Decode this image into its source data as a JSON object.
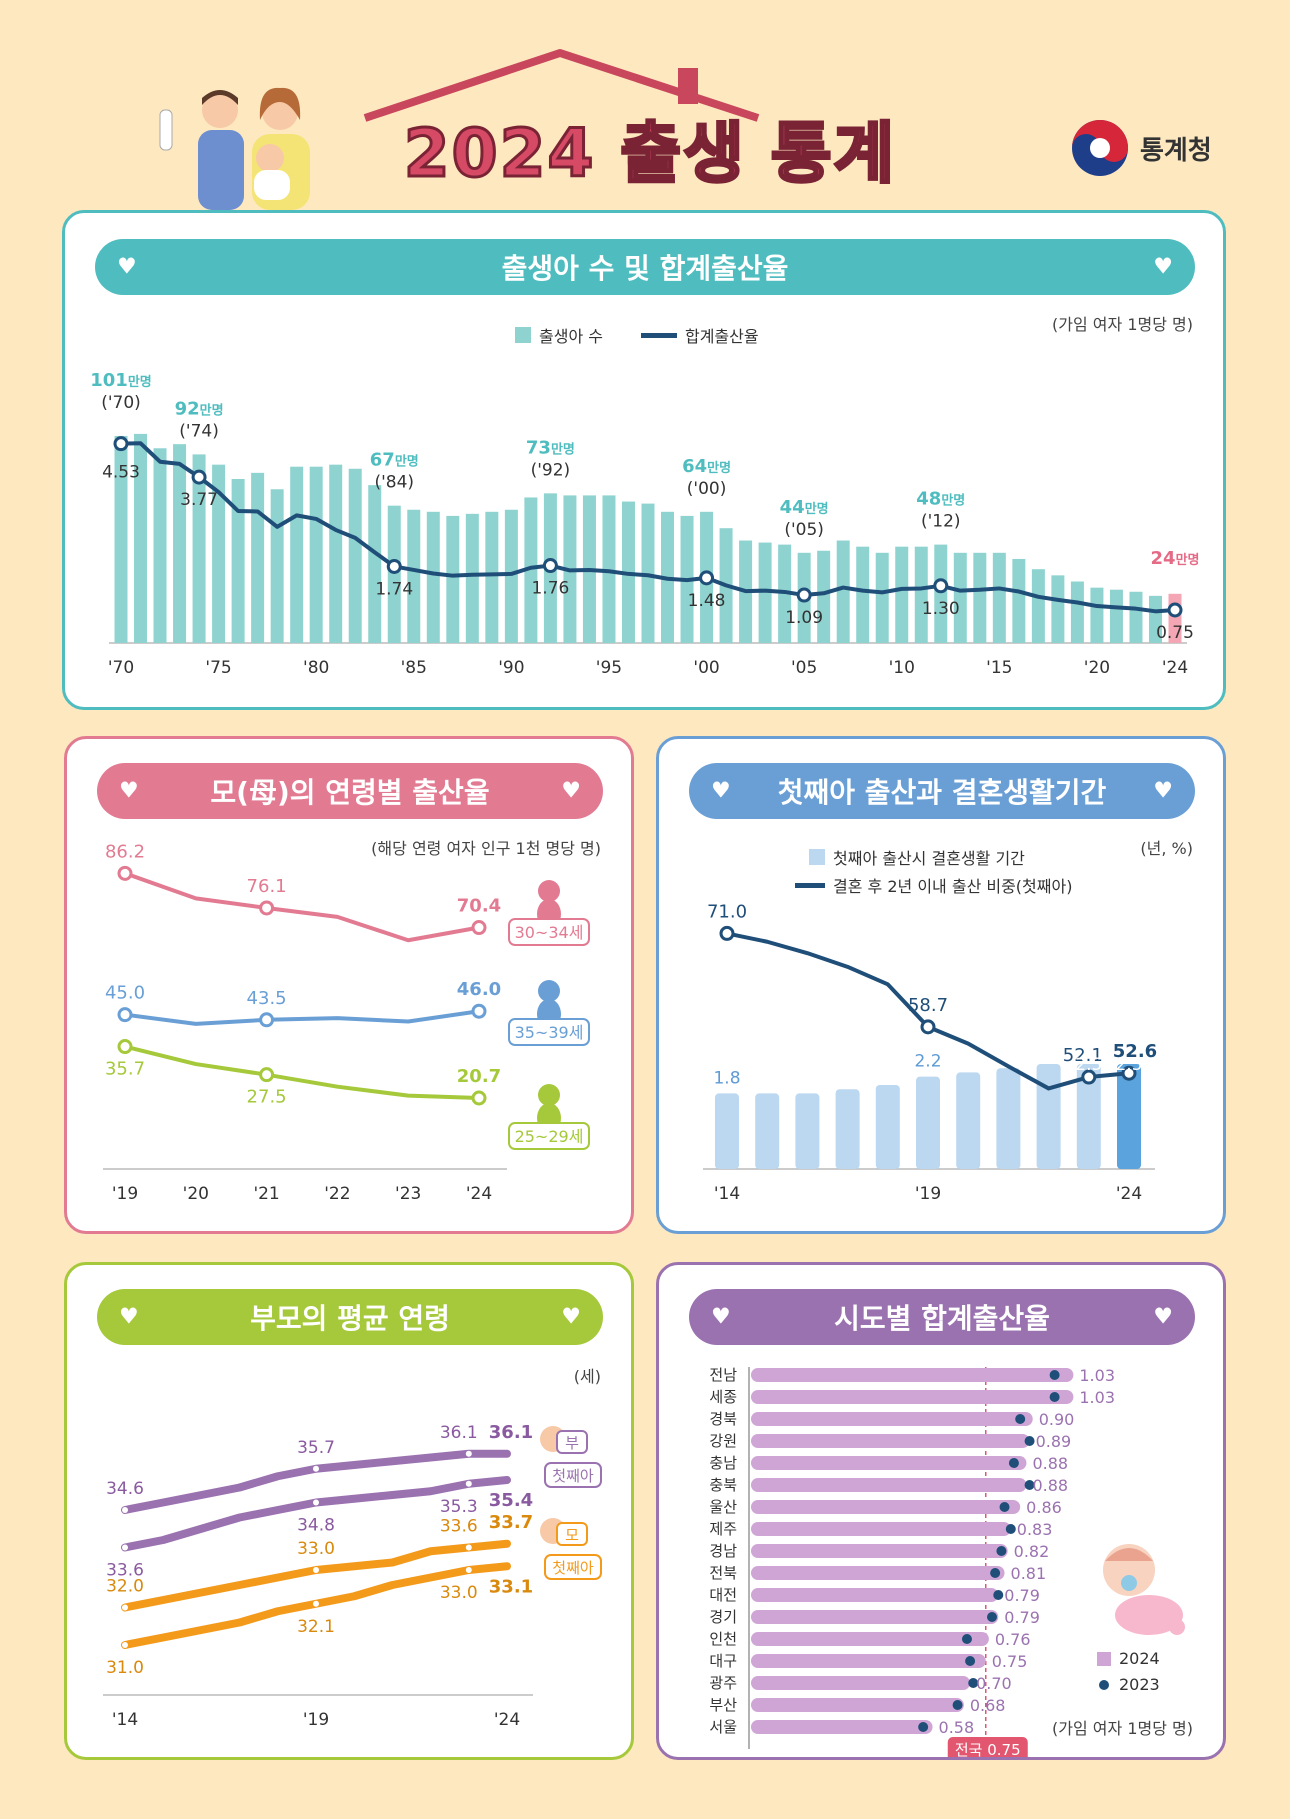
{
  "header": {
    "title": "2024 출생 통계",
    "agency": "통계청"
  },
  "colors": {
    "teal": "#4fbdbf",
    "tealBar": "#8fd3d0",
    "navy": "#1f4e79",
    "pink": "#e27b92",
    "blue": "#6a9fd6",
    "green": "#a5c93a",
    "purple": "#9b72b0",
    "orange": "#f39a1b",
    "lightblue": "#bcd7f0",
    "tfrBar": "#cfa5d6"
  },
  "panel1": {
    "title": "출생아 수 및 합계출산율",
    "unit": "(가임 여자 1명당 명)",
    "legend": {
      "bars": "출생아 수",
      "line": "합계출산율"
    },
    "xticks": [
      "'70",
      "'75",
      "'80",
      "'85",
      "'90",
      "'95",
      "'00",
      "'05",
      "'10",
      "'15",
      "'20",
      "'24"
    ],
    "birth_labels": [
      {
        "value": "101",
        "suffix": "만명",
        "year": "('70)"
      },
      {
        "value": "92",
        "suffix": "만명",
        "year": "('74)"
      },
      {
        "value": "67",
        "suffix": "만명",
        "year": "('84)"
      },
      {
        "value": "73",
        "suffix": "만명",
        "year": "('92)"
      },
      {
        "value": "64",
        "suffix": "만명",
        "year": "('00)"
      },
      {
        "value": "44",
        "suffix": "만명",
        "year": "('05)"
      },
      {
        "value": "48",
        "suffix": "만명",
        "year": "('12)"
      },
      {
        "value": "24",
        "suffix": "만명",
        "year": ""
      }
    ],
    "tfr_labels": [
      "4.53",
      "3.77",
      "1.74",
      "1.76",
      "1.48",
      "1.09",
      "1.30",
      "0.75"
    ]
  },
  "panel2": {
    "title": "모(母)의 연령별 출산율",
    "unit": "(해당 연령 여자 인구 1천 명당 명)",
    "xticks": [
      "'19",
      "'20",
      "'21",
      "'22",
      "'23",
      "'24"
    ],
    "badges": [
      "30~34세",
      "35~39세",
      "25~29세"
    ],
    "labels": {
      "a30": [
        "86.2",
        "76.1",
        "70.4"
      ],
      "a35": [
        "45.0",
        "43.5",
        "46.0"
      ],
      "a25": [
        "35.7",
        "27.5",
        "20.7"
      ]
    }
  },
  "panel3": {
    "title": "첫째아 출산과 결혼생활기간",
    "unit": "(년, %)",
    "legend": {
      "bars": "첫째아 출산시 결혼생활 기간",
      "line": "결혼 후 2년 이내 출산 비중(첫째아)"
    },
    "xticks": [
      "'14",
      "'19",
      "'24"
    ],
    "line_labels": [
      "71.0",
      "58.7",
      "52.1",
      "52.6"
    ],
    "bar_labels": [
      "1.8",
      "2.2",
      "2.5",
      "2.5"
    ]
  },
  "panel4": {
    "title": "부모의 평균 연령",
    "unit": "(세)",
    "xticks": [
      "'14",
      "'19",
      "'24"
    ],
    "badges": {
      "father": "부",
      "first1": "첫째아",
      "mother": "모",
      "first2": "첫째아"
    },
    "labels": {
      "father": [
        "34.6",
        "35.7",
        "36.1",
        "36.1"
      ],
      "father_first": [
        "33.6",
        "34.8",
        "35.3",
        "35.4"
      ],
      "mother": [
        "32.0",
        "33.0",
        "33.6",
        "33.7"
      ],
      "mother_first": [
        "31.0",
        "32.1",
        "33.0",
        "33.1"
      ]
    }
  },
  "panel5": {
    "title": "시도별 합계출산율",
    "unit": "(가임 여자 1명당 명)",
    "national": "전국 0.75",
    "legend": {
      "y2024": "2024",
      "y2023": "2023"
    }
  },
  "chart_data": [
    {
      "type": "bar",
      "title": "출생아 수 및 합계출산율",
      "x": [
        1970,
        1971,
        1972,
        1973,
        1974,
        1975,
        1976,
        1977,
        1978,
        1979,
        1980,
        1981,
        1982,
        1983,
        1984,
        1985,
        1986,
        1987,
        1988,
        1989,
        1990,
        1991,
        1992,
        1993,
        1994,
        1995,
        1996,
        1997,
        1998,
        1999,
        2000,
        2001,
        2002,
        2003,
        2004,
        2005,
        2006,
        2007,
        2008,
        2009,
        2010,
        2011,
        2012,
        2013,
        2014,
        2015,
        2016,
        2017,
        2018,
        2019,
        2020,
        2021,
        2022,
        2023,
        2024
      ],
      "series": [
        {
          "name": "출생아 수",
          "values": [
            101,
            102,
            95,
            97,
            92,
            87,
            80,
            83,
            75,
            86,
            86,
            87,
            85,
            77,
            67,
            65,
            64,
            62,
            63,
            64,
            65,
            71,
            73,
            72,
            72,
            72,
            69,
            68,
            64,
            62,
            64,
            56,
            50,
            49,
            48,
            44,
            45,
            50,
            47,
            44,
            47,
            47,
            48,
            44,
            44,
            44,
            41,
            36,
            33,
            30,
            27,
            26,
            25,
            23,
            24
          ]
        },
        {
          "name": "합계출산율",
          "values": [
            4.53,
            4.54,
            4.12,
            4.07,
            3.77,
            3.43,
            3.0,
            2.99,
            2.64,
            2.9,
            2.82,
            2.57,
            2.39,
            2.06,
            1.74,
            1.66,
            1.58,
            1.53,
            1.55,
            1.56,
            1.57,
            1.71,
            1.76,
            1.65,
            1.66,
            1.63,
            1.57,
            1.54,
            1.46,
            1.43,
            1.48,
            1.31,
            1.18,
            1.19,
            1.16,
            1.09,
            1.13,
            1.26,
            1.19,
            1.15,
            1.23,
            1.24,
            1.3,
            1.19,
            1.21,
            1.24,
            1.17,
            1.05,
            0.98,
            0.92,
            0.84,
            0.81,
            0.78,
            0.72,
            0.75
          ]
        }
      ]
    },
    {
      "type": "line",
      "title": "모(母)의 연령별 출산율",
      "unit": "(해당 연령 여자 인구 1천 명당 명)",
      "x": [
        "'19",
        "'20",
        "'21",
        "'22",
        "'23",
        "'24"
      ],
      "series": [
        {
          "name": "30~34세",
          "values": [
            86.2,
            78.9,
            76.1,
            73.5,
            66.7,
            70.4
          ]
        },
        {
          "name": "35~39세",
          "values": [
            45.0,
            42.3,
            43.5,
            44.0,
            43.0,
            46.0
          ]
        },
        {
          "name": "25~29세",
          "values": [
            35.7,
            30.6,
            27.5,
            24.0,
            21.4,
            20.7
          ]
        }
      ]
    },
    {
      "type": "bar",
      "title": "첫째아 출산과 결혼생활기간",
      "x": [
        2014,
        2015,
        2016,
        2017,
        2018,
        2019,
        2020,
        2021,
        2022,
        2023,
        2024
      ],
      "series": [
        {
          "name": "첫째아 출산시 결혼생활 기간",
          "values": [
            1.8,
            1.8,
            1.8,
            1.9,
            2.0,
            2.2,
            2.3,
            2.4,
            2.5,
            2.5,
            2.5
          ]
        },
        {
          "name": "결혼 후 2년 이내 출산 비중(첫째아)",
          "values": [
            71.0,
            69.9,
            68.4,
            66.6,
            64.3,
            58.7,
            56.5,
            53.5,
            50.6,
            52.1,
            52.6
          ]
        }
      ]
    },
    {
      "type": "line",
      "title": "부모의 평균 연령",
      "x": [
        2014,
        2015,
        2016,
        2017,
        2018,
        2019,
        2020,
        2021,
        2022,
        2023,
        2024
      ],
      "series": [
        {
          "name": "부",
          "values": [
            34.6,
            34.8,
            35.0,
            35.2,
            35.5,
            35.7,
            35.8,
            35.9,
            36.0,
            36.1,
            36.1
          ]
        },
        {
          "name": "부 첫째아",
          "values": [
            33.6,
            33.8,
            34.1,
            34.4,
            34.6,
            34.8,
            34.9,
            35.0,
            35.1,
            35.3,
            35.4
          ]
        },
        {
          "name": "모",
          "values": [
            32.0,
            32.2,
            32.4,
            32.6,
            32.8,
            33.0,
            33.1,
            33.2,
            33.5,
            33.6,
            33.7
          ]
        },
        {
          "name": "모 첫째아",
          "values": [
            31.0,
            31.2,
            31.4,
            31.6,
            31.9,
            32.1,
            32.3,
            32.6,
            32.8,
            33.0,
            33.1
          ]
        }
      ]
    },
    {
      "type": "bar",
      "title": "시도별 합계출산율",
      "unit": "(가임 여자 1명당 명)",
      "categories": [
        "전남",
        "세종",
        "경북",
        "강원",
        "충남",
        "충북",
        "울산",
        "제주",
        "경남",
        "전북",
        "대전",
        "경기",
        "인천",
        "대구",
        "광주",
        "부산",
        "서울"
      ],
      "series": [
        {
          "name": "2024",
          "values": [
            1.03,
            1.03,
            0.9,
            0.89,
            0.88,
            0.88,
            0.86,
            0.83,
            0.82,
            0.81,
            0.79,
            0.79,
            0.76,
            0.75,
            0.7,
            0.68,
            0.58
          ]
        },
        {
          "name": "2023",
          "values": [
            0.97,
            0.97,
            0.86,
            0.89,
            0.84,
            0.89,
            0.81,
            0.83,
            0.8,
            0.78,
            0.79,
            0.77,
            0.69,
            0.7,
            0.71,
            0.66,
            0.55
          ]
        }
      ],
      "reference": {
        "label": "전국",
        "value": 0.75
      }
    }
  ]
}
